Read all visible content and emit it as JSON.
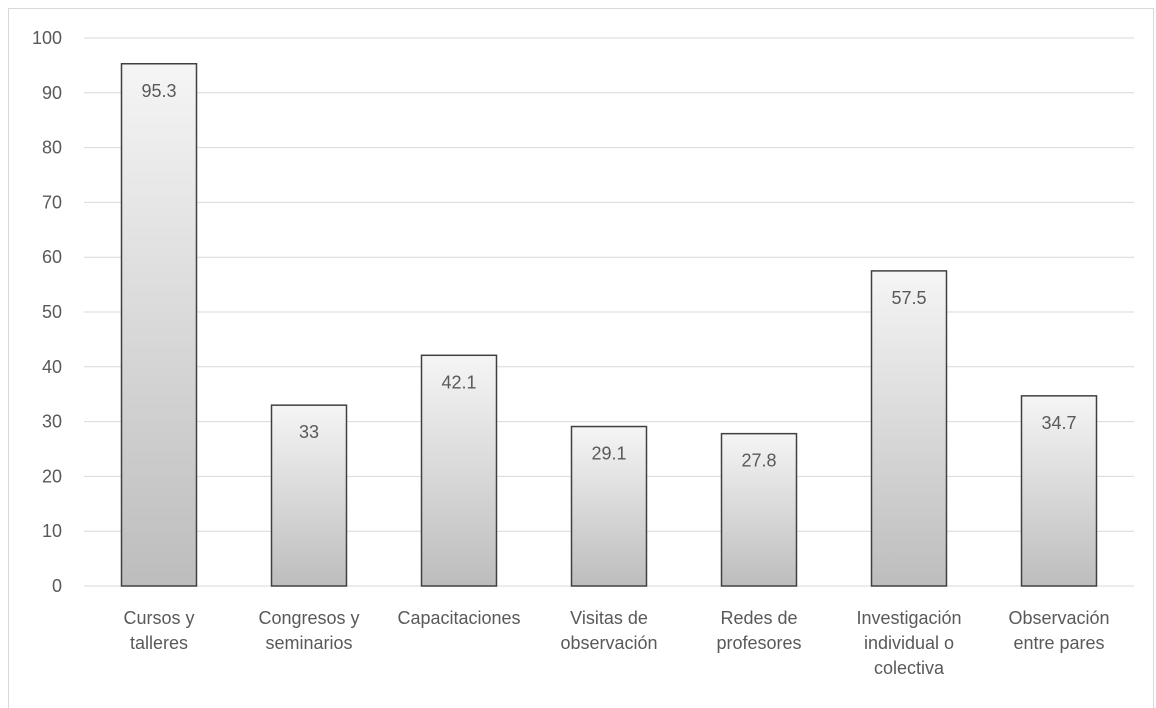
{
  "chart_data": {
    "type": "bar",
    "title": "",
    "xlabel": "",
    "ylabel": "",
    "ylim": [
      0,
      100
    ],
    "yticks": [
      0,
      10,
      20,
      30,
      40,
      50,
      60,
      70,
      80,
      90,
      100
    ],
    "grid": true,
    "legend": "none",
    "categories": [
      [
        "Cursos y",
        "talleres"
      ],
      [
        "Congresos y",
        "seminarios"
      ],
      [
        "Capacitaciones"
      ],
      [
        "Visitas de",
        "observación"
      ],
      [
        "Redes de",
        "profesores"
      ],
      [
        "Investigación",
        "individual o",
        "colectiva"
      ],
      [
        "Observación",
        "entre pares"
      ]
    ],
    "values": [
      95.3,
      33,
      42.1,
      29.1,
      27.8,
      57.5,
      34.7
    ],
    "data_labels": [
      "95.3",
      "33",
      "42.1",
      "29.1",
      "27.8",
      "57.5",
      "34.7"
    ],
    "colors": {
      "bar_fill_top": "#f5f5f5",
      "bar_fill_bottom": "#bdbdbd",
      "bar_stroke": "#404040",
      "grid": "#d9d9d9",
      "text": "#595959"
    }
  }
}
